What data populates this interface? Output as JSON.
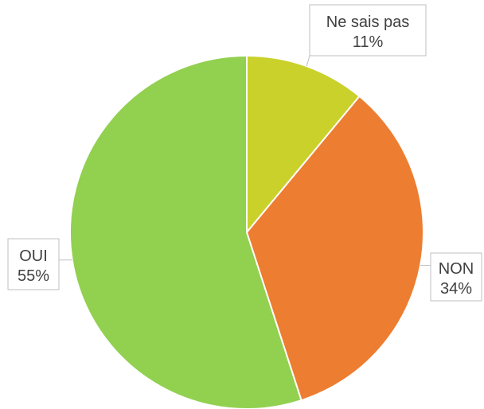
{
  "chart_data": {
    "type": "pie",
    "categories": [
      "Ne sais pas",
      "NON",
      "OUI"
    ],
    "values": [
      11,
      34,
      55
    ],
    "value_labels": [
      "11%",
      "34%",
      "55%"
    ],
    "colors": [
      "#c9d12a",
      "#ed7d31",
      "#92d050"
    ]
  }
}
